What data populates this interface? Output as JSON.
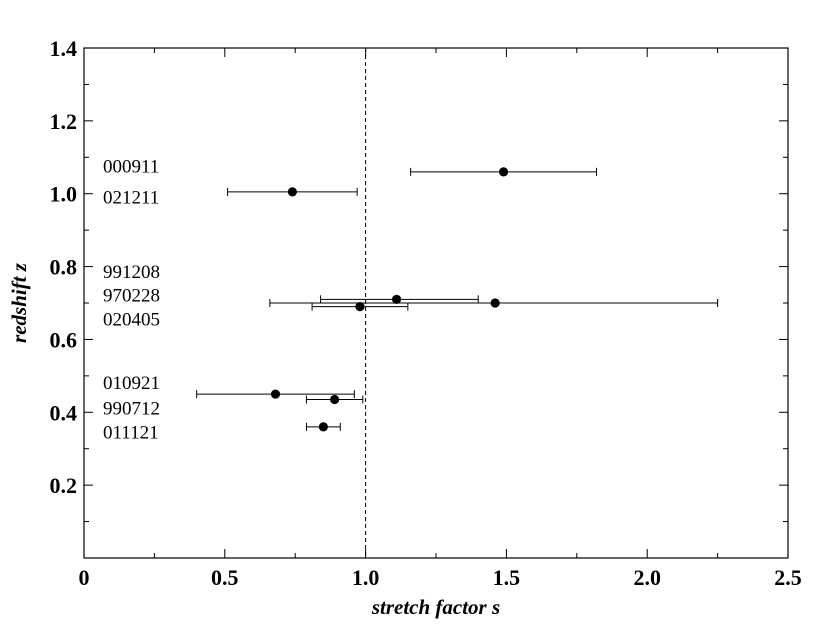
{
  "chart_data": {
    "type": "scatter",
    "xlabel": "stretch factor s",
    "ylabel": "redshift z",
    "xlim": [
      0,
      2.5
    ],
    "ylim": [
      0,
      1.4
    ],
    "x_ticks": [
      {
        "value": 0,
        "label": "0"
      },
      {
        "value": 0.5,
        "label": "0.5"
      },
      {
        "value": 1.0,
        "label": "1.0"
      },
      {
        "value": 1.5,
        "label": "1.5"
      },
      {
        "value": 2.0,
        "label": "2.0"
      },
      {
        "value": 2.5,
        "label": "2.5"
      }
    ],
    "y_ticks": [
      {
        "value": 0.2,
        "label": "0.2"
      },
      {
        "value": 0.4,
        "label": "0.4"
      },
      {
        "value": 0.6,
        "label": "0.6"
      },
      {
        "value": 0.8,
        "label": "0.8"
      },
      {
        "value": 1.0,
        "label": "1.0"
      },
      {
        "value": 1.2,
        "label": "1.2"
      },
      {
        "value": 1.4,
        "label": "1.4"
      }
    ],
    "reference_line_x": 1.0,
    "grid": false,
    "points": [
      {
        "s": 1.49,
        "z": 1.06,
        "s_low": 1.16,
        "s_high": 1.82
      },
      {
        "s": 0.74,
        "z": 1.005,
        "s_low": 0.51,
        "s_high": 0.97
      },
      {
        "s": 1.11,
        "z": 0.71,
        "s_low": 0.84,
        "s_high": 1.4
      },
      {
        "s": 1.46,
        "z": 0.7,
        "s_low": 0.66,
        "s_high": 2.25
      },
      {
        "s": 0.98,
        "z": 0.69,
        "s_low": 0.81,
        "s_high": 1.15
      },
      {
        "s": 0.68,
        "z": 0.45,
        "s_low": 0.4,
        "s_high": 0.96
      },
      {
        "s": 0.89,
        "z": 0.435,
        "s_low": 0.79,
        "s_high": 0.99
      },
      {
        "s": 0.85,
        "z": 0.36,
        "s_low": 0.79,
        "s_high": 0.91
      }
    ],
    "annotations": [
      {
        "text": "000911",
        "z": 1.075
      },
      {
        "text": "021211",
        "z": 0.99
      },
      {
        "text": "991208",
        "z": 0.785
      },
      {
        "text": "970228",
        "z": 0.72
      },
      {
        "text": "020405",
        "z": 0.655
      },
      {
        "text": "010921",
        "z": 0.48
      },
      {
        "text": "990712",
        "z": 0.41
      },
      {
        "text": "011121",
        "z": 0.345
      }
    ]
  }
}
